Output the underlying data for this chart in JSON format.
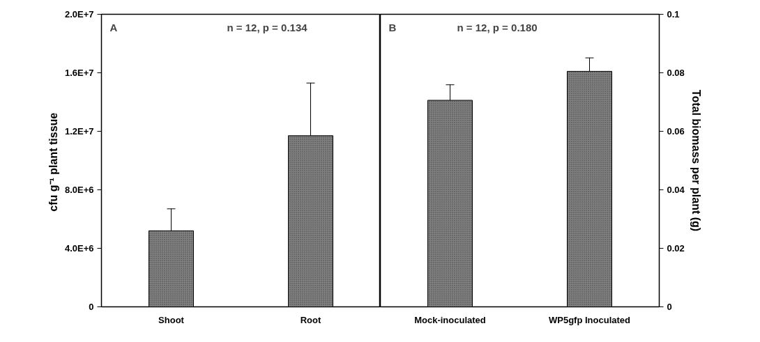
{
  "chart_data": [
    {
      "type": "bar",
      "ylabel": "cfu g⁻¹ plant  tissue",
      "categories": [
        "Shoot",
        "Root"
      ],
      "values": [
        5200000.0,
        11700000.0
      ],
      "color": "#808080",
      "errors": [
        [
          5200000.0,
          6700000.0
        ],
        [
          11700000.0,
          15300000.0
        ]
      ],
      "ylim": [
        0,
        20000000.0
      ],
      "yticks": [
        0,
        {
          "value": 4000000.0,
          "label": "4.0E+6"
        },
        {
          "value": 8000000.0,
          "label": "8.0E+6"
        },
        {
          "value": 12000000.0,
          "label": "1.2E+7"
        },
        {
          "value": 16000000.0,
          "label": "1.6E+7"
        },
        {
          "value": 20000000.0,
          "label": "2.0E+7"
        }
      ],
      "annotations": [
        "A",
        "n = 12, p = 0.134"
      ],
      "grid": false
    },
    {
      "type": "bar",
      "ylabel": "Total biomass per plant (g)",
      "categories": [
        "Mock-inoculated",
        "WP5gfp Inoculated"
      ],
      "values": [
        0.0706,
        0.0805
      ],
      "color": "#808080",
      "errors": [
        [
          0.0706,
          0.0759
        ],
        [
          0.0805,
          0.0851
        ]
      ],
      "ylim": [
        0,
        0.1
      ],
      "yticks": [
        0,
        0.02,
        0.04,
        0.06,
        0.08,
        0.1
      ],
      "annotations": [
        "B",
        "n = 12, p = 0.180"
      ],
      "grid": false
    }
  ]
}
